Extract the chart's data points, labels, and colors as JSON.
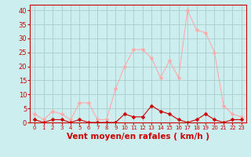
{
  "hours": [
    0,
    1,
    2,
    3,
    4,
    5,
    6,
    7,
    8,
    9,
    10,
    11,
    12,
    13,
    14,
    15,
    16,
    17,
    18,
    19,
    20,
    21,
    22,
    23
  ],
  "wind_avg": [
    1,
    0,
    1,
    1,
    0,
    1,
    0,
    0,
    0,
    0,
    3,
    2,
    2,
    6,
    4,
    3,
    1,
    0,
    1,
    3,
    1,
    0,
    1,
    1
  ],
  "wind_gust": [
    3,
    1,
    4,
    3,
    1,
    7,
    7,
    1,
    1,
    12,
    20,
    26,
    26,
    23,
    16,
    22,
    16,
    40,
    33,
    32,
    25,
    6,
    3,
    2
  ],
  "bg_color": "#cceeee",
  "grid_color": "#aacccc",
  "line_avg_color": "#cc0000",
  "line_gust_color": "#ffaaaa",
  "xlabel": "Vent moyen/en rafales ( km/h )",
  "xlabel_color": "#cc0000",
  "xlabel_fontsize": 7.5,
  "tick_color": "#cc0000",
  "ylim": [
    0,
    42
  ],
  "yticks": [
    0,
    5,
    10,
    15,
    20,
    25,
    30,
    35,
    40
  ],
  "marker_size": 2.5,
  "line_width": 0.8
}
